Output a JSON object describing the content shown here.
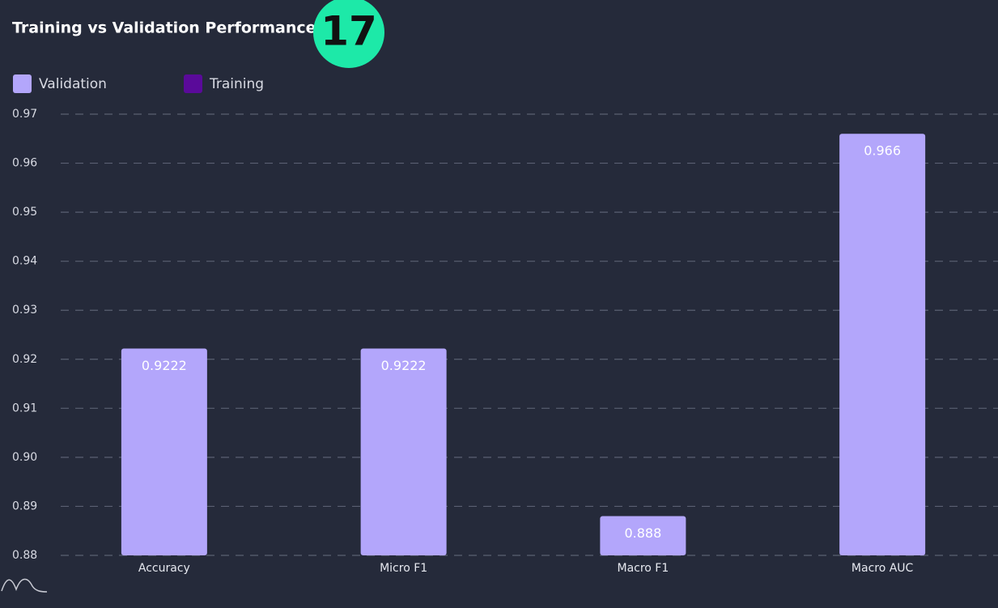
{
  "chart_data": {
    "type": "bar",
    "title": "Training vs Validation Performance",
    "badge": "17",
    "categories": [
      "Accuracy",
      "Micro F1",
      "Macro F1",
      "Macro AUC"
    ],
    "series": [
      {
        "name": "Validation",
        "color": "#b3a6fb",
        "values": [
          0.9222,
          0.9222,
          0.888,
          0.966
        ]
      },
      {
        "name": "Training",
        "color": "#5a0a9a",
        "values": [
          null,
          null,
          null,
          null
        ]
      }
    ],
    "ylim": [
      0.88,
      0.97
    ],
    "yticks": [
      0.88,
      0.89,
      {
        "value": 0.9,
        "label": "0.90"
      },
      0.91,
      0.92,
      0.93,
      0.94,
      0.95,
      0.96,
      0.97
    ],
    "grid": true
  }
}
